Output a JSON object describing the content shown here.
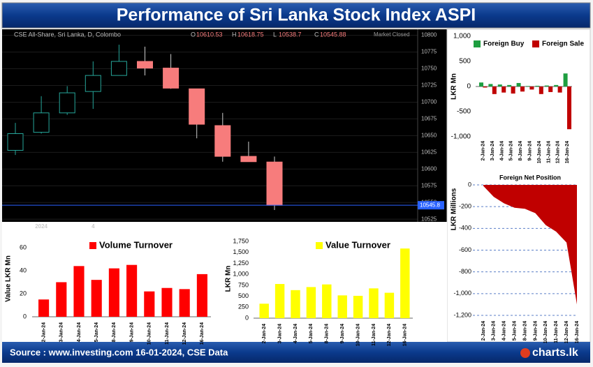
{
  "title": "Performance of Sri Lanka Stock Index ASPI",
  "footer": "Source : www.investing.com 16-01-2024, CSE Data",
  "logo": "charts.lk",
  "chart_data": [
    {
      "type": "candlestick",
      "symbol": "CSE All-Share, Sri Lanka, D, Colombo",
      "ohlc_letters": [
        "O",
        "H",
        "L",
        "C"
      ],
      "status": "Market Closed",
      "price_label": "10545.8",
      "categories": [
        null,
        "2024",
        null,
        "4",
        null,
        null,
        null,
        null,
        null,
        null,
        null
      ],
      "open": [
        10628,
        10655,
        10684,
        10716,
        10740,
        10761,
        10751,
        10720,
        10665,
        10619,
        10610.53
      ],
      "high": [
        10669,
        10709,
        10724,
        10761,
        10786,
        10783,
        10772,
        10720,
        10684,
        10641,
        10618.75
      ],
      "low": [
        10621,
        10653,
        10681,
        10690,
        10740,
        10740,
        10720,
        10646,
        10611,
        10611,
        10538.7
      ],
      "close": [
        10653,
        10684,
        10714,
        10740,
        10761,
        10751,
        10721,
        10667,
        10619,
        10611,
        10545.88
      ],
      "up_color": "#26a69a",
      "down_color": "#f77c7c",
      "ylim": [
        10521,
        10809
      ],
      "yticks": [
        10525,
        10550,
        10575,
        10600,
        10625,
        10650,
        10675,
        10700,
        10725,
        10750,
        10775,
        10800
      ],
      "grid": true
    },
    {
      "type": "bar",
      "y_label": "LKR Mn",
      "categories": [
        "2-Jan-24",
        "3-Jan-24",
        "4-Jan-24",
        "5-Jan-24",
        "8-Jan-24",
        "9-Jan-24",
        "10-Jan-24",
        "11-Jan-24",
        "12-Jan-24",
        "16-Jan-24"
      ],
      "series": [
        {
          "name": "Foreign Buy",
          "color": "#1e9e40",
          "values": [
            80,
            50,
            40,
            30,
            70,
            10,
            15,
            20,
            30,
            260
          ]
        },
        {
          "name": "Foreign Sale",
          "color": "#c00000",
          "values": [
            -20,
            -150,
            -120,
            -140,
            -100,
            -60,
            -150,
            -110,
            -120,
            -850
          ]
        }
      ],
      "ylim": [
        -1000,
        1000
      ],
      "yticks": [
        {
          "value": -1000,
          "label": "-1,000"
        },
        -500,
        0,
        500,
        {
          "value": 1000,
          "label": "1,000"
        }
      ],
      "legend": "top"
    },
    {
      "type": "area",
      "title": "Foreign Net Position",
      "y_label": "LKR Millions",
      "categories": [
        "2-Jan-24",
        "3-Jan-24",
        "4-Jan-24",
        "5-Jan-24",
        "8-Jan-24",
        "9-Jan-24",
        "10-Jan-24",
        "11-Jan-24",
        "12-Jan-24",
        "16-Jan-24"
      ],
      "values": [
        -10,
        -110,
        -170,
        -210,
        -220,
        -260,
        -370,
        -430,
        -530,
        -1100
      ],
      "color": "#c00000",
      "ylim": [
        -1200,
        0
      ],
      "yticks": [
        0,
        -200,
        -400,
        -600,
        -800,
        {
          "value": -1000,
          "label": "-1,000"
        },
        {
          "value": -1200,
          "label": "-1,200"
        }
      ],
      "grid": true
    },
    {
      "type": "bar",
      "y_label": "Value LKR Mn",
      "categories": [
        "2-Jan-24",
        "3-Jan-24",
        "4-Jan-24",
        "5-Jan-24",
        "8-Jan-24",
        "9-Jan-24",
        "10-Jan-24",
        "11-Jan-24",
        "12-Jan-24",
        "16-Jan-24"
      ],
      "series": [
        {
          "name": "Volume Turnover",
          "color": "#ff0000",
          "values": [
            15,
            30,
            44,
            32,
            42,
            45,
            22,
            25,
            24,
            37
          ]
        }
      ],
      "ylim": [
        0,
        66
      ],
      "yticks": [
        0,
        20,
        40,
        60
      ],
      "legend": "top"
    },
    {
      "type": "bar",
      "y_label": "LKR Mn",
      "categories": [
        "2-Jan-24",
        "3-Jan-24",
        "4-Jan-24",
        "5-Jan-24",
        "8-Jan-24",
        "9-Jan-24",
        "10-Jan-24",
        "11-Jan-24",
        "12-Jan-24",
        "16-Jan-24"
      ],
      "series": [
        {
          "name": "Value Turnover",
          "color": "#ffff00",
          "values": [
            330,
            780,
            640,
            710,
            770,
            520,
            510,
            680,
            580,
            1590
          ]
        }
      ],
      "ylim": [
        0,
        1800
      ],
      "yticks": [
        0,
        250,
        500,
        750,
        {
          "value": 1000,
          "label": "1,000"
        },
        {
          "value": 1250,
          "label": "1,250"
        },
        {
          "value": 1500,
          "label": "1,500"
        },
        {
          "value": 1750,
          "label": "1,750"
        }
      ],
      "legend": "top"
    }
  ]
}
